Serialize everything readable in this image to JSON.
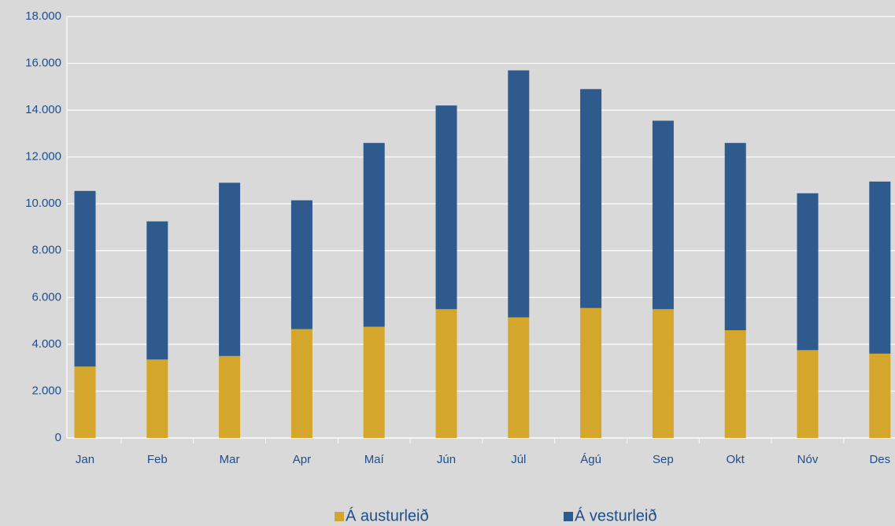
{
  "chart_data": {
    "type": "bar",
    "stacked": true,
    "categories": [
      "Jan",
      "Feb",
      "Mar",
      "Apr",
      "Maí",
      "Jún",
      "Júl",
      "Ágú",
      "Sep",
      "Okt",
      "Nóv",
      "Des"
    ],
    "series": [
      {
        "name": "Á austurleið",
        "color": "#d4a72c",
        "values": [
          3050,
          3350,
          3500,
          4650,
          4750,
          5500,
          5150,
          5550,
          5500,
          4600,
          3750,
          3600
        ]
      },
      {
        "name": "Á vesturleið",
        "color": "#2e5a8e",
        "values": [
          7500,
          5900,
          7400,
          5500,
          7850,
          8700,
          10550,
          9350,
          8050,
          8000,
          6700,
          7350
        ]
      }
    ],
    "ylim": [
      0,
      18000
    ],
    "yticks": [
      0,
      {
        "value": 2000,
        "label": "2.000"
      },
      {
        "value": 4000,
        "label": "4.000"
      },
      {
        "value": 6000,
        "label": "6.000"
      },
      {
        "value": 8000,
        "label": "8.000"
      },
      {
        "value": 10000,
        "label": "10.000"
      },
      {
        "value": 12000,
        "label": "12.000"
      },
      {
        "value": 14000,
        "label": "14.000"
      },
      {
        "value": 16000,
        "label": "16.000"
      },
      {
        "value": 18000,
        "label": "18.000"
      }
    ],
    "grid": true,
    "legend": "bottom"
  }
}
